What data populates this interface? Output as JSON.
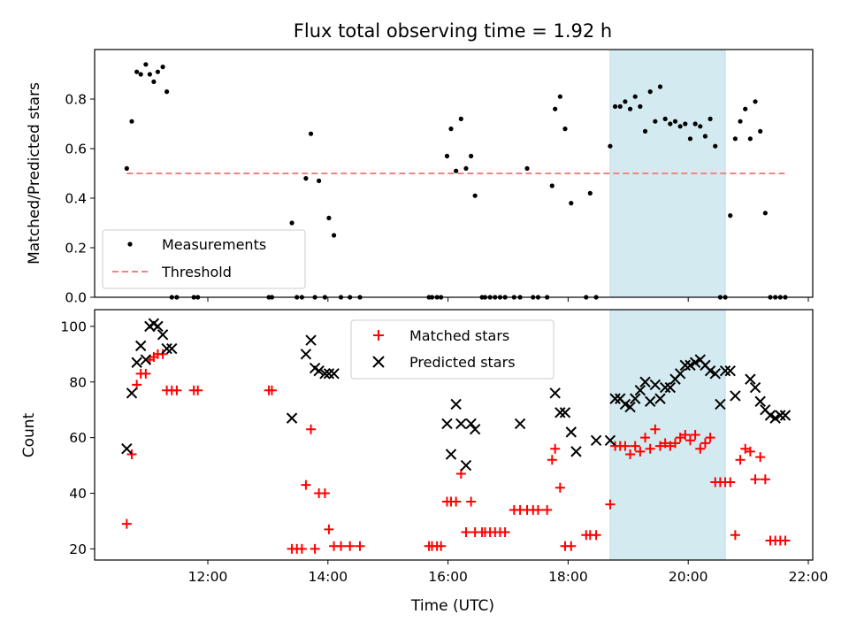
{
  "chart_data": {
    "type": "scatter",
    "title": "Flux total observing time = 1.92 h",
    "xlabel": "Time (UTC)",
    "x_ticks": [
      "12:00",
      "14:00",
      "16:00",
      "18:00",
      "20:00",
      "22:00"
    ],
    "highlight_interval": {
      "start": "18:42",
      "end": "20:37",
      "color": "#d4eaf1"
    },
    "panels": [
      {
        "name": "top",
        "ylabel": "Matched/Predicted stars",
        "ylim": [
          0,
          1.0
        ],
        "y_ticks": [
          "0.0",
          "0.2",
          "0.4",
          "0.6",
          "0.8"
        ],
        "legend_position": "lower-left",
        "series": [
          {
            "name": "Measurements",
            "kind": "dot",
            "color": "#000000",
            "x": [
              "10:39",
              "10:44",
              "10:49",
              "10:53",
              "10:58",
              "11:02",
              "11:06",
              "11:10",
              "11:15",
              "11:19",
              "11:24",
              "11:29",
              "11:46",
              "11:50",
              "13:01",
              "13:04",
              "13:24",
              "13:29",
              "13:34",
              "13:38",
              "13:43",
              "13:47",
              "13:51",
              "13:57",
              "14:01",
              "14:06",
              "14:13",
              "14:22",
              "14:32",
              "15:41",
              "15:44",
              "15:49",
              "15:53",
              "15:59",
              "16:03",
              "16:08",
              "16:13",
              "16:18",
              "16:23",
              "16:27",
              "16:34",
              "16:37",
              "16:42",
              "16:47",
              "16:52",
              "16:57",
              "17:06",
              "17:12",
              "17:19",
              "17:25",
              "17:30",
              "17:39",
              "17:44",
              "17:47",
              "17:52",
              "17:57",
              "18:03",
              "18:18",
              "18:22",
              "18:28",
              "18:42",
              "18:47",
              "18:52",
              "18:57",
              "19:02",
              "19:07",
              "19:12",
              "19:17",
              "19:22",
              "19:27",
              "19:32",
              "19:37",
              "19:42",
              "19:47",
              "19:52",
              "19:57",
              "20:02",
              "20:07",
              "20:12",
              "20:17",
              "20:22",
              "20:27",
              "20:32",
              "20:37",
              "20:42",
              "20:47",
              "20:52",
              "20:57",
              "21:02",
              "21:07",
              "21:12",
              "21:17",
              "21:22",
              "21:27",
              "21:32",
              "21:37"
            ],
            "y": [
              0.52,
              0.71,
              0.91,
              0.9,
              0.94,
              0.9,
              0.87,
              0.91,
              0.93,
              0.83,
              0.0,
              0.0,
              0.0,
              0.0,
              0.0,
              0.0,
              0.3,
              0.0,
              0.0,
              0.48,
              0.66,
              0.0,
              0.47,
              0.0,
              0.32,
              0.25,
              0.0,
              0.0,
              0.0,
              0.0,
              0.0,
              0.0,
              0.0,
              0.57,
              0.68,
              0.51,
              0.72,
              0.52,
              0.57,
              0.41,
              0.0,
              0.0,
              0.0,
              0.0,
              0.0,
              0.0,
              0.0,
              0.0,
              0.52,
              0.0,
              0.0,
              0.0,
              0.45,
              0.76,
              0.81,
              0.68,
              0.38,
              0.0,
              0.42,
              0.0,
              0.61,
              0.77,
              0.77,
              0.79,
              0.76,
              0.81,
              0.77,
              0.67,
              0.83,
              0.71,
              0.85,
              0.72,
              0.7,
              0.71,
              0.69,
              0.7,
              0.64,
              0.7,
              0.69,
              0.65,
              0.72,
              0.61,
              0.0,
              0.0,
              0.33,
              0.64,
              0.71,
              0.76,
              0.64,
              0.79,
              0.67,
              0.34,
              0.0,
              0.0,
              0.0,
              0.0
            ]
          },
          {
            "name": "Threshold",
            "kind": "dashed-line",
            "color": "#ff7f7f",
            "x": [
              "10:39",
              "21:37"
            ],
            "y": [
              0.5,
              0.5
            ]
          }
        ]
      },
      {
        "name": "bottom",
        "ylabel": "Count",
        "ylim": [
          16,
          106
        ],
        "y_ticks": [
          "20",
          "40",
          "60",
          "80",
          "100"
        ],
        "legend_position": "top-center",
        "series": [
          {
            "name": "Matched stars",
            "kind": "plus",
            "color": "#ff0000",
            "x": [
              "10:39",
              "10:44",
              "10:49",
              "10:53",
              "10:58",
              "11:02",
              "11:06",
              "11:10",
              "11:15",
              "11:19",
              "11:24",
              "11:29",
              "11:46",
              "11:50",
              "13:01",
              "13:04",
              "13:24",
              "13:29",
              "13:34",
              "13:38",
              "13:43",
              "13:47",
              "13:51",
              "13:57",
              "14:01",
              "14:06",
              "14:13",
              "14:22",
              "14:32",
              "15:41",
              "15:44",
              "15:49",
              "15:53",
              "15:59",
              "16:03",
              "16:08",
              "16:13",
              "16:18",
              "16:23",
              "16:27",
              "16:34",
              "16:37",
              "16:42",
              "16:47",
              "16:52",
              "16:57",
              "17:06",
              "17:12",
              "17:19",
              "17:25",
              "17:30",
              "17:39",
              "17:44",
              "17:47",
              "17:52",
              "17:57",
              "18:03",
              "18:18",
              "18:22",
              "18:28",
              "18:42",
              "18:47",
              "18:52",
              "18:57",
              "19:02",
              "19:07",
              "19:12",
              "19:17",
              "19:22",
              "19:27",
              "19:32",
              "19:37",
              "19:42",
              "19:47",
              "19:52",
              "19:57",
              "20:02",
              "20:07",
              "20:12",
              "20:17",
              "20:22",
              "20:27",
              "20:32",
              "20:37",
              "20:42",
              "20:47",
              "20:52",
              "20:57",
              "21:02",
              "21:07",
              "21:12",
              "21:17",
              "21:22",
              "21:27",
              "21:32",
              "21:37"
            ],
            "y": [
              29,
              54,
              79,
              83,
              83,
              88,
              89,
              90,
              90,
              77,
              77,
              77,
              77,
              77,
              77,
              77,
              20,
              20,
              20,
              43,
              63,
              20,
              40,
              40,
              27,
              21,
              21,
              21,
              21,
              21,
              21,
              21,
              21,
              37,
              37,
              37,
              47,
              26,
              37,
              26,
              26,
              26,
              26,
              26,
              26,
              26,
              34,
              34,
              34,
              34,
              34,
              34,
              52,
              56,
              42,
              21,
              21,
              25,
              25,
              25,
              36,
              57,
              57,
              57,
              54,
              57,
              55,
              60,
              56,
              63,
              57,
              58,
              57,
              58,
              60,
              61,
              59,
              61,
              56,
              58,
              60,
              44,
              44,
              44,
              44,
              25,
              52,
              56,
              55,
              45,
              53,
              45,
              23,
              23,
              23,
              23
            ]
          },
          {
            "name": "Predicted stars",
            "kind": "cross",
            "color": "#000000",
            "x": [
              "10:39",
              "10:44",
              "10:49",
              "10:53",
              "10:58",
              "11:02",
              "11:06",
              "11:10",
              "11:15",
              "11:19",
              "11:24",
              "13:24",
              "13:38",
              "13:43",
              "13:47",
              "13:51",
              "13:57",
              "14:01",
              "14:06",
              "15:59",
              "16:03",
              "16:08",
              "16:13",
              "16:18",
              "16:23",
              "16:27",
              "17:12",
              "17:47",
              "17:52",
              "17:57",
              "18:03",
              "18:08",
              "18:28",
              "18:42",
              "18:47",
              "18:52",
              "18:57",
              "19:02",
              "19:07",
              "19:12",
              "19:17",
              "19:22",
              "19:27",
              "19:32",
              "19:37",
              "19:42",
              "19:47",
              "19:52",
              "19:57",
              "20:02",
              "20:07",
              "20:12",
              "20:17",
              "20:22",
              "20:27",
              "20:32",
              "20:37",
              "20:42",
              "20:47",
              "21:02",
              "21:07",
              "21:12",
              "21:17",
              "21:22",
              "21:27",
              "21:32",
              "21:37"
            ],
            "y": [
              56,
              76,
              87,
              93,
              88,
              100,
              101,
              100,
              97,
              92,
              92,
              67,
              90,
              95,
              85,
              84,
              83,
              83,
              83,
              65,
              54,
              72,
              65,
              50,
              65,
              63,
              65,
              76,
              69,
              69,
              62,
              55,
              59,
              59,
              74,
              74,
              72,
              71,
              74,
              77,
              80,
              73,
              79,
              74,
              78,
              78,
              81,
              83,
              86,
              86,
              87,
              88,
              86,
              84,
              83,
              72,
              84,
              84,
              75,
              81,
              78,
              73,
              70,
              68,
              67,
              68,
              68
            ]
          }
        ]
      }
    ]
  }
}
